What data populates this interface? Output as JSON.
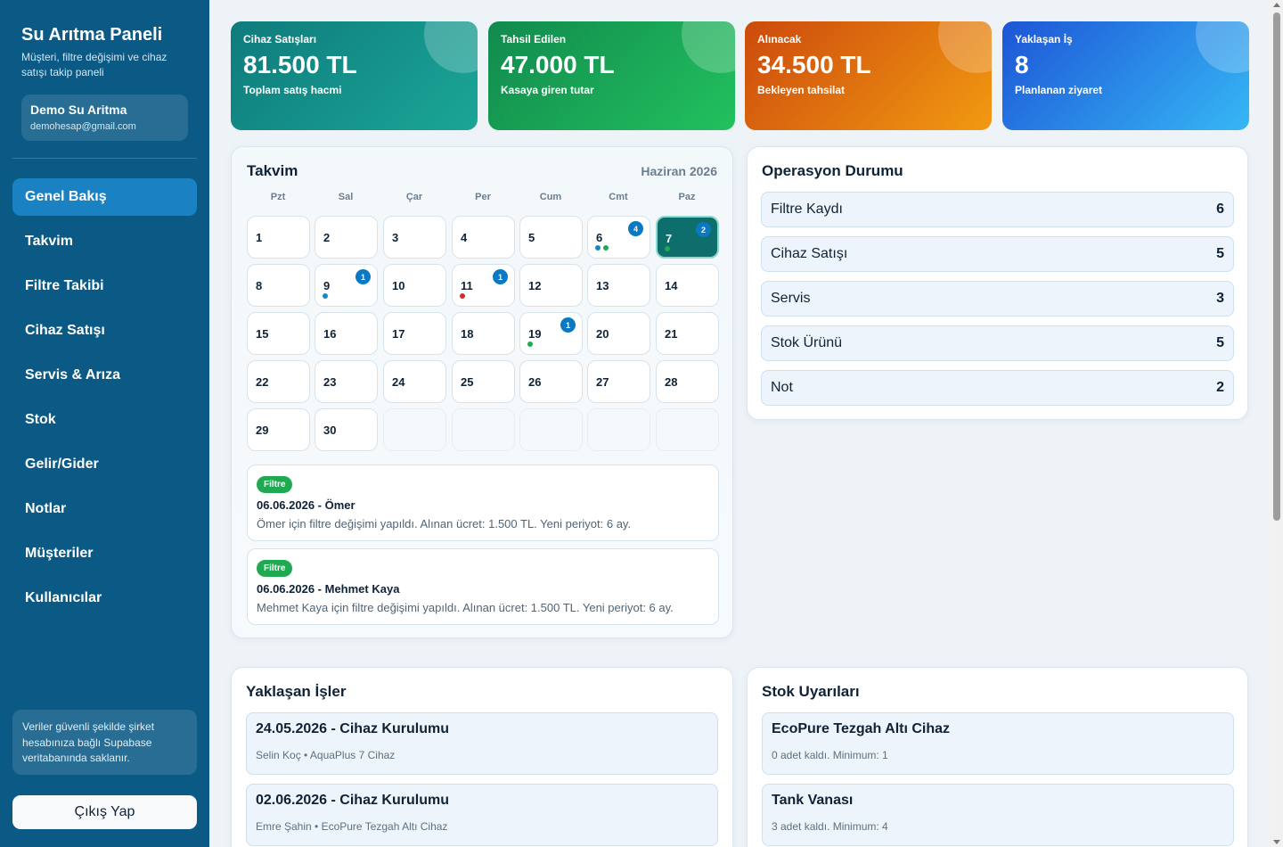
{
  "sidebar": {
    "title": "Su Arıtma Paneli",
    "subtitle": "Müşteri, filtre değişimi ve cihaz satışı takip paneli",
    "user": {
      "name": "Demo Su Aritma",
      "email": "demohesap@gmail.com"
    },
    "nav": [
      "Genel Bakış",
      "Takvim",
      "Filtre Takibi",
      "Cihaz Satışı",
      "Servis & Arıza",
      "Stok",
      "Gelir/Gider",
      "Notlar",
      "Müşteriler",
      "Kullanıcılar"
    ],
    "active_nav": "Genel Bakış",
    "note": "Veriler güvenli şekilde şirket hesabınıza bağlı Supabase veritabanında saklanır.",
    "logout": "Çıkış Yap"
  },
  "stats": [
    {
      "label": "Cihaz Satışları",
      "value": "81.500 TL",
      "sub": "Toplam satış hacmi",
      "gradient": [
        "#0f7b7c",
        "#1aa697"
      ]
    },
    {
      "label": "Tahsil Edilen",
      "value": "47.000 TL",
      "sub": "Kasaya giren tutar",
      "gradient": [
        "#118a4e",
        "#22c15e"
      ]
    },
    {
      "label": "Alınacak",
      "value": "34.500 TL",
      "sub": "Bekleyen tahsilat",
      "gradient": [
        "#cc4a0c",
        "#f29a12"
      ]
    },
    {
      "label": "Yaklaşan İş",
      "value": "8",
      "sub": "Planlanan ziyaret",
      "gradient": [
        "#1d55d6",
        "#36b8f5"
      ]
    }
  ],
  "calendar": {
    "title": "Takvim",
    "month": "Haziran 2026",
    "weekdays": [
      "Pzt",
      "Sal",
      "Çar",
      "Per",
      "Cum",
      "Cmt",
      "Paz"
    ],
    "days": [
      "1",
      "2",
      "3",
      "4",
      "5",
      "6",
      "7",
      "8",
      "9",
      "10",
      "11",
      "12",
      "13",
      "14",
      "15",
      "16",
      "17",
      "18",
      "19",
      "20",
      "21",
      "22",
      "23",
      "24",
      "25",
      "26",
      "27",
      "28",
      "29",
      "30"
    ],
    "today": "7",
    "badges": {
      "6": "4",
      "7": "2",
      "9": "1",
      "11": "1",
      "19": "1"
    },
    "dots": {
      "6": [
        "#1a86c7",
        "#1faa52"
      ],
      "7": [
        "#1faa52"
      ],
      "9": [
        "#1a86c7"
      ],
      "11": [
        "#d42b2b"
      ],
      "19": [
        "#1faa52"
      ]
    },
    "events": [
      {
        "tag": "Filtre",
        "head": "06.06.2026 - Ömer",
        "body": "Ömer için filtre değişimi yapıldı. Alınan ücret: 1.500 TL. Yeni periyot: 6 ay."
      },
      {
        "tag": "Filtre",
        "head": "06.06.2026 - Mehmet Kaya",
        "body": "Mehmet Kaya için filtre değişimi yapıldı. Alınan ücret: 1.500 TL. Yeni periyot: 6 ay."
      }
    ]
  },
  "operations": {
    "title": "Operasyon Durumu",
    "rows": [
      {
        "label": "Filtre Kaydı",
        "count": "6"
      },
      {
        "label": "Cihaz Satışı",
        "count": "5"
      },
      {
        "label": "Servis",
        "count": "3"
      },
      {
        "label": "Stok Ürünü",
        "count": "5"
      },
      {
        "label": "Not",
        "count": "2"
      }
    ]
  },
  "upcoming": {
    "title": "Yaklaşan İşler",
    "items": [
      {
        "head": "24.05.2026 - Cihaz Kurulumu",
        "sub": "Selin Koç • AquaPlus 7 Cihaz"
      },
      {
        "head": "02.06.2026 - Cihaz Kurulumu",
        "sub": "Emre Şahin • EcoPure Tezgah Altı Cihaz"
      }
    ]
  },
  "stock_alerts": {
    "title": "Stok Uyarıları",
    "items": [
      {
        "head": "EcoPure Tezgah Altı Cihaz",
        "sub": "0 adet kaldı. Minimum: 1"
      },
      {
        "head": "Tank Vanası",
        "sub": "3 adet kaldı. Minimum: 4"
      }
    ]
  }
}
